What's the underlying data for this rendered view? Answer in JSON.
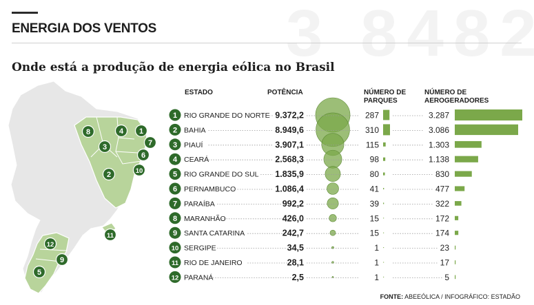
{
  "background_number": "3 8482",
  "kicker": "ENERGIA DOS VENTOS",
  "headline": "Onde está a produção de energia eólica no Brasil",
  "columns": {
    "estado": "ESTADO",
    "potencia": "POTÊNCIA",
    "parques": "NÚMERO DE\nPARQUES",
    "aerogeradores": "NÚMERO DE\nAEROGERADORES"
  },
  "footer": {
    "label": "FONTE:",
    "text": " ABEEÓLICA / INFOGRÁFICO: ESTADÃO"
  },
  "colors": {
    "accent_dark": "#2e6a2a",
    "bar": "#7ba84a",
    "bubble": "#7ba84a",
    "map_fill": "#b8d49b",
    "map_base": "#e7e7e7"
  },
  "chart_data": {
    "type": "table",
    "rows": [
      {
        "rank": "1",
        "estado": "RIO GRANDE DO NORTE",
        "potencia_label": "9.372,2",
        "potencia": 9372.2,
        "parques": 287,
        "aerogeradores_label": "3.287",
        "aerogeradores": 3287
      },
      {
        "rank": "2",
        "estado": "BAHIA",
        "potencia_label": "8.949,6",
        "potencia": 8949.6,
        "parques": 310,
        "aerogeradores_label": "3.086",
        "aerogeradores": 3086
      },
      {
        "rank": "3",
        "estado": "PIAUÍ",
        "potencia_label": "3.907,1",
        "potencia": 3907.1,
        "parques": 115,
        "aerogeradores_label": "1.303",
        "aerogeradores": 1303
      },
      {
        "rank": "4",
        "estado": "CEARÁ",
        "potencia_label": "2.568,3",
        "potencia": 2568.3,
        "parques": 98,
        "aerogeradores_label": "1.138",
        "aerogeradores": 1138
      },
      {
        "rank": "5",
        "estado": "RIO GRANDE DO SUL",
        "potencia_label": "1.835,9",
        "potencia": 1835.9,
        "parques": 80,
        "aerogeradores_label": "830",
        "aerogeradores": 830
      },
      {
        "rank": "6",
        "estado": "PERNAMBUCO",
        "potencia_label": "1.086,4",
        "potencia": 1086.4,
        "parques": 41,
        "aerogeradores_label": "477",
        "aerogeradores": 477
      },
      {
        "rank": "7",
        "estado": "PARAÍBA",
        "potencia_label": "992,2",
        "potencia": 992.2,
        "parques": 39,
        "aerogeradores_label": "322",
        "aerogeradores": 322
      },
      {
        "rank": "8",
        "estado": "MARANHÃO",
        "potencia_label": "426,0",
        "potencia": 426.0,
        "parques": 15,
        "aerogeradores_label": "172",
        "aerogeradores": 172
      },
      {
        "rank": "9",
        "estado": "SANTA CATARINA",
        "potencia_label": "242,7",
        "potencia": 242.7,
        "parques": 15,
        "aerogeradores_label": "174",
        "aerogeradores": 174
      },
      {
        "rank": "10",
        "estado": "SERGIPE",
        "potencia_label": "34,5",
        "potencia": 34.5,
        "parques": 1,
        "aerogeradores_label": "23",
        "aerogeradores": 23
      },
      {
        "rank": "11",
        "estado": "RIO DE JANEIRO",
        "potencia_label": "28,1",
        "potencia": 28.1,
        "parques": 1,
        "aerogeradores_label": "17",
        "aerogeradores": 17
      },
      {
        "rank": "12",
        "estado": "PARANÁ",
        "potencia_label": "2,5",
        "potencia": 2.5,
        "parques": 1,
        "aerogeradores_label": "5",
        "aerogeradores": 5
      }
    ]
  }
}
